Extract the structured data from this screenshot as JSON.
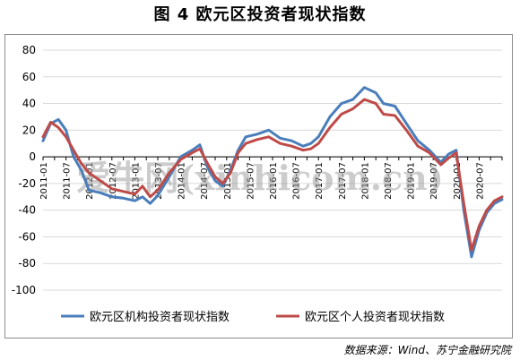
{
  "title": "图 4  欧元区投资者现状指数",
  "source": "数据来源：Wind、苏宁金融研究院",
  "watermark": "爱牛网(xinhicom.cn)",
  "colors": {
    "institutional": "#4A7EBB",
    "individual": "#BE4B48",
    "grid": "#d9d9d9",
    "axis": "#000000"
  },
  "chart_data": {
    "type": "line",
    "title": "图 4  欧元区投资者现状指数",
    "ylim": [
      -100,
      80
    ],
    "yticks": [
      80,
      60,
      40,
      20,
      0,
      -20,
      -40,
      -60,
      -80,
      -100
    ],
    "x_start": "2011-01",
    "x_end": "2021-01",
    "xtick_labels": [
      "2011-01",
      "2011-07",
      "2012-01",
      "2012-07",
      "2013-01",
      "2013-07",
      "2014-01",
      "2014-07",
      "2015-01",
      "2015-07",
      "2016-01",
      "2016-07",
      "2017-01",
      "2017-07",
      "2018-01",
      "2018-07",
      "2019-01",
      "2019-07",
      "2020-01",
      "2020-07"
    ],
    "grid": "horizontal",
    "legend_position": "bottom",
    "series": [
      {
        "name": "欧元区机构投资者现状指数",
        "color": "#4A7EBB",
        "points": [
          [
            "2011-01",
            12
          ],
          [
            "2011-03",
            25
          ],
          [
            "2011-05",
            28
          ],
          [
            "2011-07",
            20
          ],
          [
            "2011-09",
            0
          ],
          [
            "2011-11",
            -10
          ],
          [
            "2012-01",
            -25
          ],
          [
            "2012-04",
            -27
          ],
          [
            "2012-07",
            -30
          ],
          [
            "2012-10",
            -31
          ],
          [
            "2013-01",
            -33
          ],
          [
            "2013-03",
            -30
          ],
          [
            "2013-05",
            -35
          ],
          [
            "2013-07",
            -29
          ],
          [
            "2013-10",
            -15
          ],
          [
            "2014-01",
            0
          ],
          [
            "2014-04",
            5
          ],
          [
            "2014-06",
            9
          ],
          [
            "2014-08",
            -8
          ],
          [
            "2014-10",
            -18
          ],
          [
            "2014-12",
            -22
          ],
          [
            "2015-02",
            -10
          ],
          [
            "2015-04",
            5
          ],
          [
            "2015-06",
            15
          ],
          [
            "2015-09",
            17
          ],
          [
            "2015-12",
            20
          ],
          [
            "2016-03",
            14
          ],
          [
            "2016-06",
            12
          ],
          [
            "2016-09",
            8
          ],
          [
            "2016-11",
            10
          ],
          [
            "2017-01",
            15
          ],
          [
            "2017-04",
            30
          ],
          [
            "2017-07",
            40
          ],
          [
            "2017-10",
            43
          ],
          [
            "2018-01",
            52
          ],
          [
            "2018-04",
            48
          ],
          [
            "2018-06",
            40
          ],
          [
            "2018-09",
            38
          ],
          [
            "2018-12",
            25
          ],
          [
            "2019-03",
            12
          ],
          [
            "2019-06",
            5
          ],
          [
            "2019-09",
            -4
          ],
          [
            "2019-11",
            2
          ],
          [
            "2020-01",
            5
          ],
          [
            "2020-03",
            -40
          ],
          [
            "2020-05",
            -75
          ],
          [
            "2020-07",
            -55
          ],
          [
            "2020-09",
            -42
          ],
          [
            "2020-11",
            -35
          ],
          [
            "2021-01",
            -32
          ]
        ]
      },
      {
        "name": "欧元区个人投资者现状指数",
        "color": "#BE4B48",
        "points": [
          [
            "2011-01",
            15
          ],
          [
            "2011-03",
            26
          ],
          [
            "2011-05",
            22
          ],
          [
            "2011-07",
            15
          ],
          [
            "2011-09",
            5
          ],
          [
            "2011-11",
            -5
          ],
          [
            "2012-01",
            -12
          ],
          [
            "2012-04",
            -18
          ],
          [
            "2012-07",
            -24
          ],
          [
            "2012-10",
            -26
          ],
          [
            "2013-01",
            -28
          ],
          [
            "2013-03",
            -22
          ],
          [
            "2013-05",
            -30
          ],
          [
            "2013-07",
            -25
          ],
          [
            "2013-10",
            -12
          ],
          [
            "2014-01",
            -2
          ],
          [
            "2014-04",
            3
          ],
          [
            "2014-06",
            6
          ],
          [
            "2014-08",
            -5
          ],
          [
            "2014-10",
            -15
          ],
          [
            "2014-12",
            -20
          ],
          [
            "2015-02",
            -12
          ],
          [
            "2015-04",
            3
          ],
          [
            "2015-06",
            10
          ],
          [
            "2015-09",
            13
          ],
          [
            "2015-12",
            15
          ],
          [
            "2016-03",
            10
          ],
          [
            "2016-06",
            8
          ],
          [
            "2016-09",
            5
          ],
          [
            "2016-11",
            6
          ],
          [
            "2017-01",
            10
          ],
          [
            "2017-04",
            22
          ],
          [
            "2017-07",
            32
          ],
          [
            "2017-10",
            36
          ],
          [
            "2018-01",
            43
          ],
          [
            "2018-04",
            40
          ],
          [
            "2018-06",
            32
          ],
          [
            "2018-09",
            31
          ],
          [
            "2018-12",
            20
          ],
          [
            "2019-03",
            8
          ],
          [
            "2019-06",
            3
          ],
          [
            "2019-09",
            -6
          ],
          [
            "2019-11",
            -1
          ],
          [
            "2020-01",
            3
          ],
          [
            "2020-03",
            -35
          ],
          [
            "2020-05",
            -70
          ],
          [
            "2020-07",
            -52
          ],
          [
            "2020-09",
            -40
          ],
          [
            "2020-11",
            -33
          ],
          [
            "2021-01",
            -30
          ]
        ]
      }
    ]
  }
}
